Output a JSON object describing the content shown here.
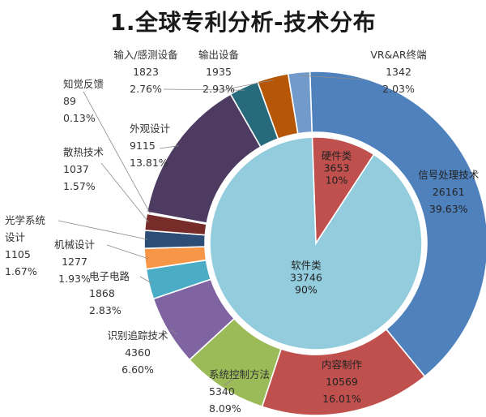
{
  "title": "1.全球专利分析-技术分布",
  "chart_data": [
    {
      "type": "pie",
      "ring": "outer",
      "slices": [
        {
          "name": "信号处理技术",
          "value": 26161,
          "percent": "39.63%",
          "color": "#4f81bd"
        },
        {
          "name": "内容制作",
          "value": 10569,
          "percent": "16.01%",
          "color": "#c0504d"
        },
        {
          "name": "系统控制方法",
          "value": 5340,
          "percent": "8.09%",
          "color": "#9bbb59"
        },
        {
          "name": "识别追踪技术",
          "value": 4360,
          "percent": "6.60%",
          "color": "#8064a2"
        },
        {
          "name": "电子电路",
          "value": 1868,
          "percent": "2.83%",
          "color": "#4bacc6"
        },
        {
          "name": "机械设计",
          "value": 1277,
          "percent": "1.93%",
          "color": "#f79646"
        },
        {
          "name": "光学系统设计",
          "value": 1105,
          "percent": "1.67%",
          "color": "#2c4d75"
        },
        {
          "name": "散热技术",
          "value": 1037,
          "percent": "1.57%",
          "color": "#772c2a"
        },
        {
          "name": "知觉反馈",
          "value": 89,
          "percent": "0.13%",
          "color": "#5f7530"
        },
        {
          "name": "外观设计",
          "value": 9115,
          "percent": "13.81%",
          "color": "#4d3b62"
        },
        {
          "name": "输入/感测设备",
          "value": 1823,
          "percent": "2.76%",
          "color": "#276a7c"
        },
        {
          "name": "输出设备",
          "value": 1935,
          "percent": "2.93%",
          "color": "#b65708"
        },
        {
          "name": "VR&AR终端",
          "value": 1342,
          "percent": "2.03%",
          "color": "#729aca"
        }
      ]
    },
    {
      "type": "pie",
      "ring": "inner",
      "slices": [
        {
          "name": "硬件类",
          "value": 3653,
          "percent": "10%",
          "color": "#c0504d"
        },
        {
          "name": "软件类",
          "value": 33746,
          "percent": "90%",
          "color": "#93cddd"
        }
      ]
    }
  ]
}
